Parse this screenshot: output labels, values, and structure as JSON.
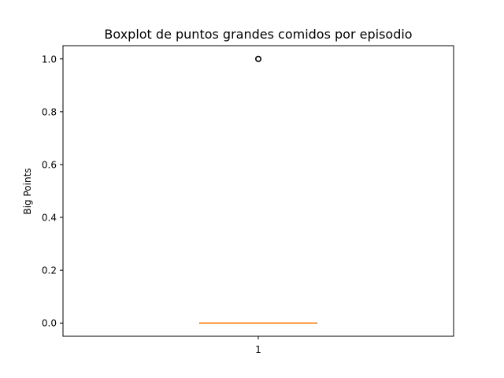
{
  "chart_data": {
    "type": "boxplot",
    "title": "Boxplot de puntos grandes comidos por episodio",
    "xlabel": "",
    "ylabel": "Big Points",
    "categories": [
      "1"
    ],
    "ylim": [
      -0.05,
      1.05
    ],
    "yticks": [
      0.0,
      0.2,
      0.4,
      0.6,
      0.8,
      1.0
    ],
    "ytick_labels": [
      "0.0",
      "0.2",
      "0.4",
      "0.6",
      "0.8",
      "1.0"
    ],
    "boxes": [
      {
        "category": "1",
        "min": 0.0,
        "q1": 0.0,
        "median": 0.0,
        "q3": 0.0,
        "max": 0.0,
        "outliers": [
          1.0
        ]
      }
    ],
    "grid": false,
    "colors": {
      "box": "#000000",
      "median": "#ff7f0e",
      "outlier": "#000000"
    }
  }
}
